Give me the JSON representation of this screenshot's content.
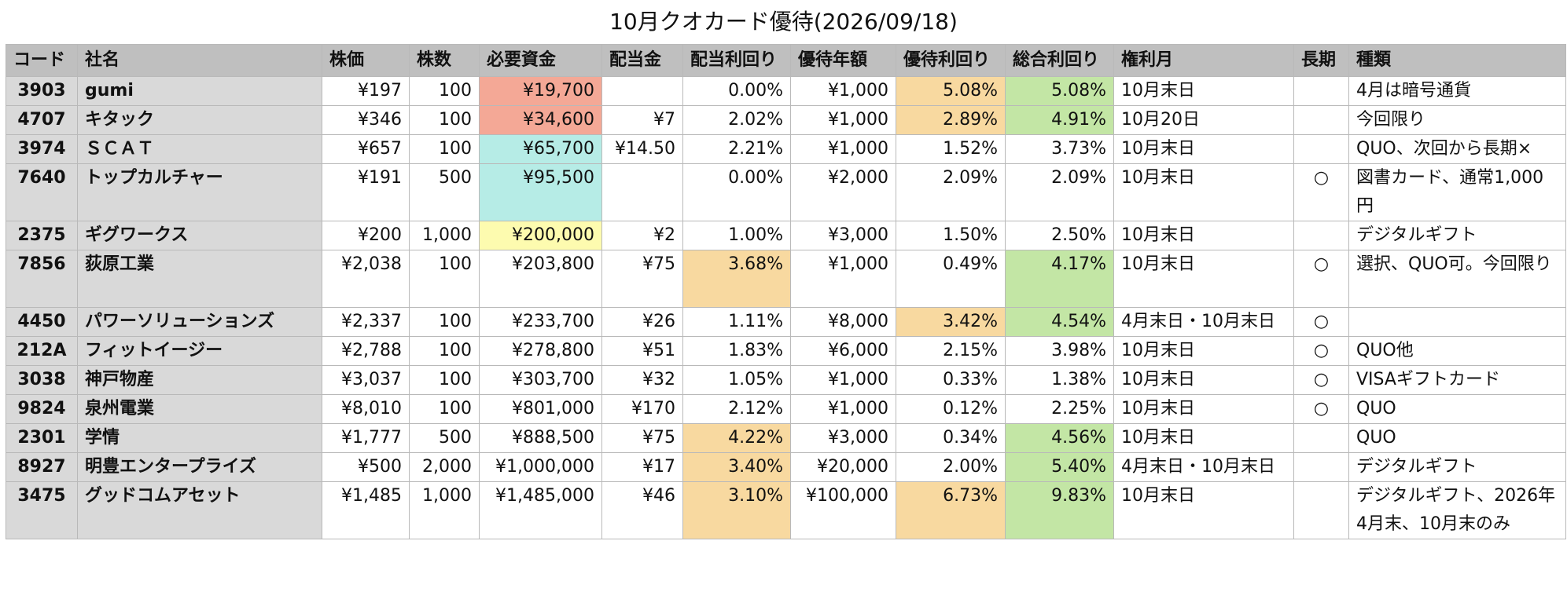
{
  "title": "10月クオカード優待(2026/09/18)",
  "colors": {
    "header_bg": "#bfbfbf",
    "fixed_col_bg": "#d9d9d9",
    "red": "#f4a896",
    "cyan": "#b6ece6",
    "yellow": "#fdfbaf",
    "orange": "#f8d9a0",
    "green": "#c3e6a5",
    "white": "#ffffff"
  },
  "headers": [
    "コード",
    "社名",
    "株価",
    "株数",
    "必要資金",
    "配当金",
    "配当利回り",
    "優待年額",
    "優待利回り",
    "総合利回り",
    "権利月",
    "長期",
    "種類"
  ],
  "rows": [
    {
      "cells": [
        "3903",
        "gumi",
        "¥197",
        "100",
        "¥19,700",
        "",
        "0.00%",
        "¥1,000",
        "5.08%",
        "5.08%",
        "10月末日",
        "",
        "4月は暗号通貨"
      ],
      "bg": {
        "4": "red",
        "8": "orange",
        "9": "green"
      }
    },
    {
      "cells": [
        "4707",
        "キタック",
        "¥346",
        "100",
        "¥34,600",
        "¥7",
        "2.02%",
        "¥1,000",
        "2.89%",
        "4.91%",
        "10月20日",
        "",
        "今回限り"
      ],
      "bg": {
        "4": "red",
        "8": "orange",
        "9": "green"
      }
    },
    {
      "cells": [
        "3974",
        "ＳＣＡＴ",
        "¥657",
        "100",
        "¥65,700",
        "¥14.50",
        "2.21%",
        "¥1,000",
        "1.52%",
        "3.73%",
        "10月末日",
        "",
        "QUO、次回から長期×"
      ],
      "bg": {
        "4": "cyan"
      }
    },
    {
      "cells": [
        "7640",
        "トップカルチャー",
        "¥191",
        "500",
        "¥95,500",
        "",
        "0.00%",
        "¥2,000",
        "2.09%",
        "2.09%",
        "10月末日",
        "○",
        "図書カード、通常1,000円"
      ],
      "bg": {
        "4": "cyan"
      },
      "tall": true
    },
    {
      "cells": [
        "2375",
        "ギグワークス",
        "¥200",
        "1,000",
        "¥200,000",
        "¥2",
        "1.00%",
        "¥3,000",
        "1.50%",
        "2.50%",
        "10月末日",
        "",
        "デジタルギフト"
      ],
      "bg": {
        "4": "yellow"
      }
    },
    {
      "cells": [
        "7856",
        "荻原工業",
        "¥2,038",
        "100",
        "¥203,800",
        "¥75",
        "3.68%",
        "¥1,000",
        "0.49%",
        "4.17%",
        "10月末日",
        "○",
        "選択、QUO可。今回限り"
      ],
      "bg": {
        "6": "orange",
        "9": "green"
      },
      "tall": true
    },
    {
      "cells": [
        "4450",
        "パワーソリューションズ",
        "¥2,337",
        "100",
        "¥233,700",
        "¥26",
        "1.11%",
        "¥8,000",
        "3.42%",
        "4.54%",
        "4月末日・10月末日",
        "○",
        ""
      ],
      "bg": {
        "8": "orange",
        "9": "green"
      }
    },
    {
      "cells": [
        "212A",
        "フィットイージー",
        "¥2,788",
        "100",
        "¥278,800",
        "¥51",
        "1.83%",
        "¥6,000",
        "2.15%",
        "3.98%",
        "10月末日",
        "○",
        "QUO他"
      ],
      "bg": {}
    },
    {
      "cells": [
        "3038",
        "神戸物産",
        "¥3,037",
        "100",
        "¥303,700",
        "¥32",
        "1.05%",
        "¥1,000",
        "0.33%",
        "1.38%",
        "10月末日",
        "○",
        "VISAギフトカード"
      ],
      "bg": {}
    },
    {
      "cells": [
        "9824",
        "泉州電業",
        "¥8,010",
        "100",
        "¥801,000",
        "¥170",
        "2.12%",
        "¥1,000",
        "0.12%",
        "2.25%",
        "10月末日",
        "○",
        "QUO"
      ],
      "bg": {}
    },
    {
      "cells": [
        "2301",
        "学情",
        "¥1,777",
        "500",
        "¥888,500",
        "¥75",
        "4.22%",
        "¥3,000",
        "0.34%",
        "4.56%",
        "10月末日",
        "",
        "QUO"
      ],
      "bg": {
        "6": "orange",
        "9": "green"
      }
    },
    {
      "cells": [
        "8927",
        "明豊エンタープライズ",
        "¥500",
        "2,000",
        "¥1,000,000",
        "¥17",
        "3.40%",
        "¥20,000",
        "2.00%",
        "5.40%",
        "4月末日・10月末日",
        "",
        "デジタルギフト"
      ],
      "bg": {
        "6": "orange",
        "9": "green"
      }
    },
    {
      "cells": [
        "3475",
        "グッドコムアセット",
        "¥1,485",
        "1,000",
        "¥1,485,000",
        "¥46",
        "3.10%",
        "¥100,000",
        "6.73%",
        "9.83%",
        "10月末日",
        "",
        "デジタルギフト、2026年4月末、10月末のみ"
      ],
      "bg": {
        "6": "orange",
        "8": "orange",
        "9": "green"
      },
      "tall": true
    }
  ]
}
